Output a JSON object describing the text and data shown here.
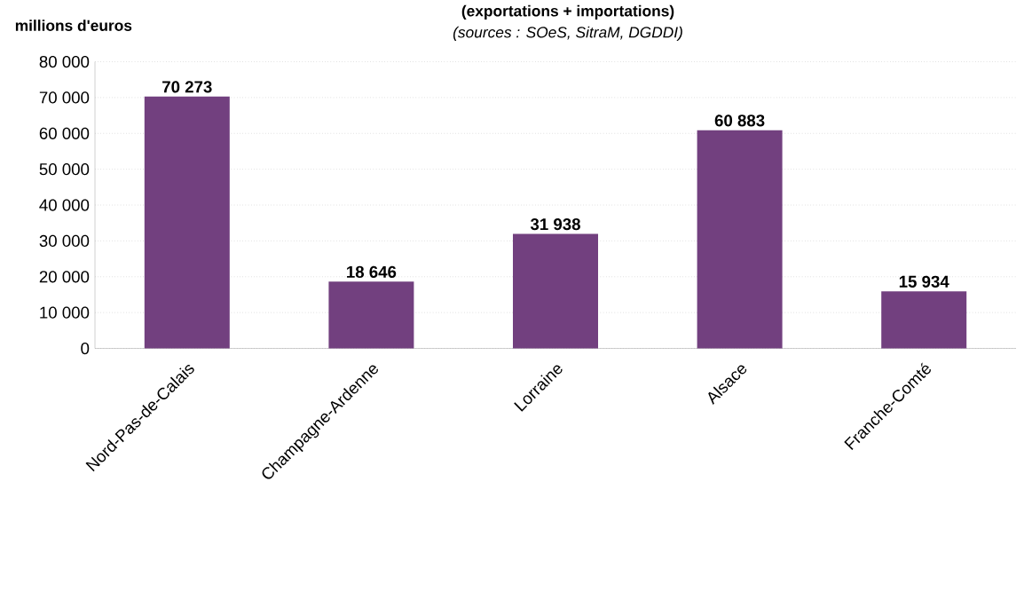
{
  "chart_data": {
    "type": "bar",
    "title": "(exportations + importations)",
    "subtitle": "(sources : SOeS, SitraM, DGDDI)",
    "ylabel": "millions d'euros",
    "categories": [
      "Nord-Pas-de-Calais",
      "Champagne-Ardenne",
      "Lorraine",
      "Alsace",
      "Franche-Comté"
    ],
    "values": [
      70273,
      18646,
      31938,
      60883,
      15934
    ],
    "value_labels": [
      "70 273",
      "18 646",
      "31 938",
      "60 883",
      "15 934"
    ],
    "color": "#72407f",
    "ylim": [
      0,
      80000
    ],
    "yticks": [
      0,
      {
        "value": 10000,
        "label": "10 000"
      },
      {
        "value": 20000,
        "label": "20 000"
      },
      {
        "value": 30000,
        "label": "30 000"
      },
      {
        "value": 40000,
        "label": "40 000"
      },
      {
        "value": 50000,
        "label": "50 000"
      },
      {
        "value": 60000,
        "label": "60 000"
      },
      {
        "value": 70000,
        "label": "70 000"
      },
      {
        "value": 80000,
        "label": "80 000"
      }
    ],
    "grid": "y"
  }
}
